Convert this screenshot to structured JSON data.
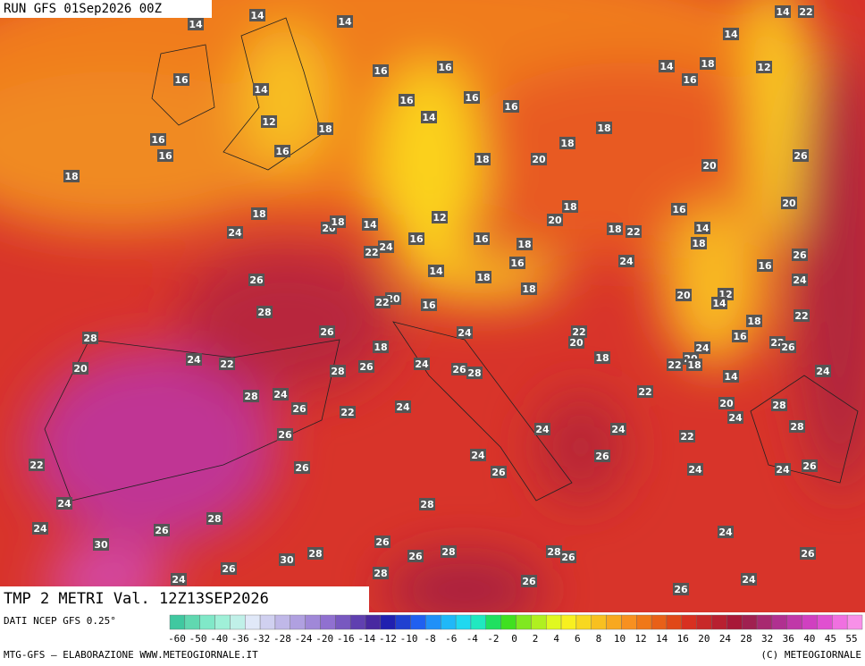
{
  "header": {
    "run": "RUN GFS 01Sep2026 00Z"
  },
  "map": {
    "title": "TMP 2 METRI Val. 12Z13SEP2026",
    "labels": [
      14,
      14,
      14,
      14,
      22,
      16,
      14,
      12,
      16,
      16,
      16,
      16,
      16,
      14,
      14,
      14,
      18,
      16,
      12,
      16,
      16,
      16,
      18,
      18,
      18,
      18,
      18,
      20,
      20,
      26,
      20,
      18,
      20,
      18,
      14,
      12,
      20,
      18,
      18,
      22,
      16,
      14,
      18,
      24,
      22,
      24,
      16,
      16,
      18,
      16,
      14,
      18,
      24,
      26,
      16,
      24,
      26,
      18,
      20,
      22,
      12,
      14,
      20,
      16,
      28,
      26,
      24,
      22,
      18,
      28,
      20,
      24,
      22,
      28,
      26,
      24,
      26,
      28,
      18,
      22,
      20,
      18,
      24,
      16,
      22,
      26,
      22,
      20,
      18,
      14,
      24,
      28,
      24,
      26,
      22,
      24,
      22,
      20,
      28,
      24,
      28,
      26,
      24,
      24,
      22,
      22,
      26,
      24,
      26,
      26,
      24,
      24,
      26,
      24,
      28,
      28,
      24,
      26,
      30,
      28,
      30,
      26,
      26,
      28,
      28,
      26,
      24,
      26,
      24,
      26,
      28,
      26,
      26,
      24
    ]
  },
  "footer": {
    "source": "DATI NCEP GFS 0.25°",
    "scale": [
      "-60",
      "-50",
      "-40",
      "-36",
      "-32",
      "-28",
      "-24",
      "-20",
      "-16",
      "-14",
      "-12",
      "-10",
      "-8",
      "-6",
      "-4",
      "-2",
      "0",
      "2",
      "4",
      "6",
      "8",
      "10",
      "12",
      "14",
      "16",
      "20",
      "24",
      "28",
      "32",
      "36",
      "40",
      "45",
      "55"
    ],
    "credit": "MTG-GFS — ELABORAZIONE WWW.METEOGIORNALE.IT",
    "copyright": "(C) METEOGIORNALE"
  }
}
